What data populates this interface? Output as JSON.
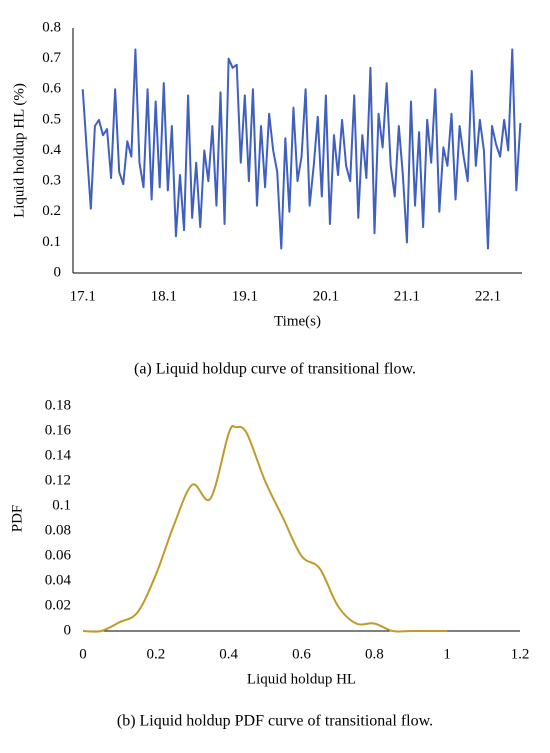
{
  "chart_data": [
    {
      "type": "line",
      "xlabel": "Time(s)",
      "ylabel": "Liquid holdup HL (%)",
      "caption": "(a) Liquid holdup curve of transitional flow.",
      "xlim": [
        16.98,
        22.52
      ],
      "xticks": [
        17.1,
        18.1,
        19.1,
        20.1,
        21.1,
        22.1
      ],
      "ylim": [
        0,
        0.8
      ],
      "yticks": [
        0,
        0.1,
        0.2,
        0.3,
        0.4,
        0.5,
        0.6,
        0.7,
        0.8
      ],
      "smooth": false,
      "left_axis": true,
      "x": [
        17.1,
        17.15,
        17.2,
        17.25,
        17.3,
        17.35,
        17.4,
        17.45,
        17.5,
        17.55,
        17.6,
        17.65,
        17.7,
        17.75,
        17.8,
        17.85,
        17.9,
        17.95,
        18.0,
        18.05,
        18.1,
        18.15,
        18.2,
        18.25,
        18.3,
        18.35,
        18.4,
        18.45,
        18.5,
        18.55,
        18.6,
        18.65,
        18.7,
        18.75,
        18.8,
        18.85,
        18.9,
        18.95,
        19.0,
        19.05,
        19.1,
        19.15,
        19.2,
        19.25,
        19.3,
        19.35,
        19.4,
        19.45,
        19.5,
        19.55,
        19.6,
        19.65,
        19.7,
        19.75,
        19.8,
        19.85,
        19.9,
        19.95,
        20.0,
        20.05,
        20.1,
        20.15,
        20.2,
        20.25,
        20.3,
        20.35,
        20.4,
        20.45,
        20.5,
        20.55,
        20.6,
        20.65,
        20.7,
        20.75,
        20.8,
        20.85,
        20.9,
        20.95,
        21.0,
        21.05,
        21.1,
        21.15,
        21.2,
        21.25,
        21.3,
        21.35,
        21.4,
        21.45,
        21.5,
        21.55,
        21.6,
        21.65,
        21.7,
        21.75,
        21.8,
        21.85,
        21.9,
        21.95,
        22.0,
        22.05,
        22.1,
        22.15,
        22.2,
        22.25,
        22.3,
        22.35,
        22.4,
        22.45,
        22.5
      ],
      "series": [
        {
          "color": "#4060c0",
          "values": [
            0.6,
            0.4,
            0.21,
            0.48,
            0.5,
            0.45,
            0.47,
            0.31,
            0.6,
            0.33,
            0.29,
            0.43,
            0.38,
            0.73,
            0.36,
            0.28,
            0.6,
            0.24,
            0.56,
            0.28,
            0.62,
            0.27,
            0.48,
            0.12,
            0.32,
            0.14,
            0.58,
            0.18,
            0.36,
            0.15,
            0.4,
            0.3,
            0.48,
            0.22,
            0.59,
            0.16,
            0.7,
            0.67,
            0.68,
            0.36,
            0.58,
            0.3,
            0.6,
            0.22,
            0.48,
            0.28,
            0.52,
            0.4,
            0.33,
            0.08,
            0.44,
            0.2,
            0.54,
            0.3,
            0.38,
            0.6,
            0.22,
            0.35,
            0.51,
            0.25,
            0.58,
            0.16,
            0.45,
            0.32,
            0.5,
            0.35,
            0.3,
            0.58,
            0.18,
            0.45,
            0.31,
            0.67,
            0.13,
            0.52,
            0.41,
            0.62,
            0.35,
            0.25,
            0.48,
            0.32,
            0.1,
            0.56,
            0.22,
            0.46,
            0.15,
            0.5,
            0.36,
            0.6,
            0.2,
            0.41,
            0.35,
            0.52,
            0.24,
            0.48,
            0.38,
            0.3,
            0.66,
            0.35,
            0.5,
            0.4,
            0.08,
            0.48,
            0.42,
            0.38,
            0.5,
            0.4,
            0.73,
            0.27,
            0.49
          ]
        }
      ]
    },
    {
      "type": "line",
      "xlabel": "Liquid holdup HL",
      "ylabel": "PDF",
      "caption": "(b) Liquid holdup PDF curve of transitional flow.",
      "xlim": [
        0,
        1.2
      ],
      "xticks": [
        0,
        0.2,
        0.4,
        0.6,
        0.8,
        1,
        1.2
      ],
      "ylim": [
        0,
        0.18
      ],
      "yticks": [
        0,
        0.02,
        0.04,
        0.06,
        0.08,
        0.1,
        0.12,
        0.14,
        0.16,
        0.18
      ],
      "smooth": true,
      "left_axis": false,
      "x": [
        0,
        0.05,
        0.1,
        0.15,
        0.2,
        0.25,
        0.3,
        0.35,
        0.4,
        0.42,
        0.45,
        0.5,
        0.55,
        0.6,
        0.65,
        0.7,
        0.75,
        0.8,
        0.85,
        0.9,
        0.95,
        1
      ],
      "series": [
        {
          "color": "#c09a2a",
          "values": [
            0,
            0,
            0.007,
            0.015,
            0.045,
            0.085,
            0.117,
            0.106,
            0.158,
            0.163,
            0.158,
            0.12,
            0.09,
            0.06,
            0.05,
            0.02,
            0.006,
            0.006,
            0,
            0,
            0,
            0
          ]
        }
      ]
    }
  ]
}
